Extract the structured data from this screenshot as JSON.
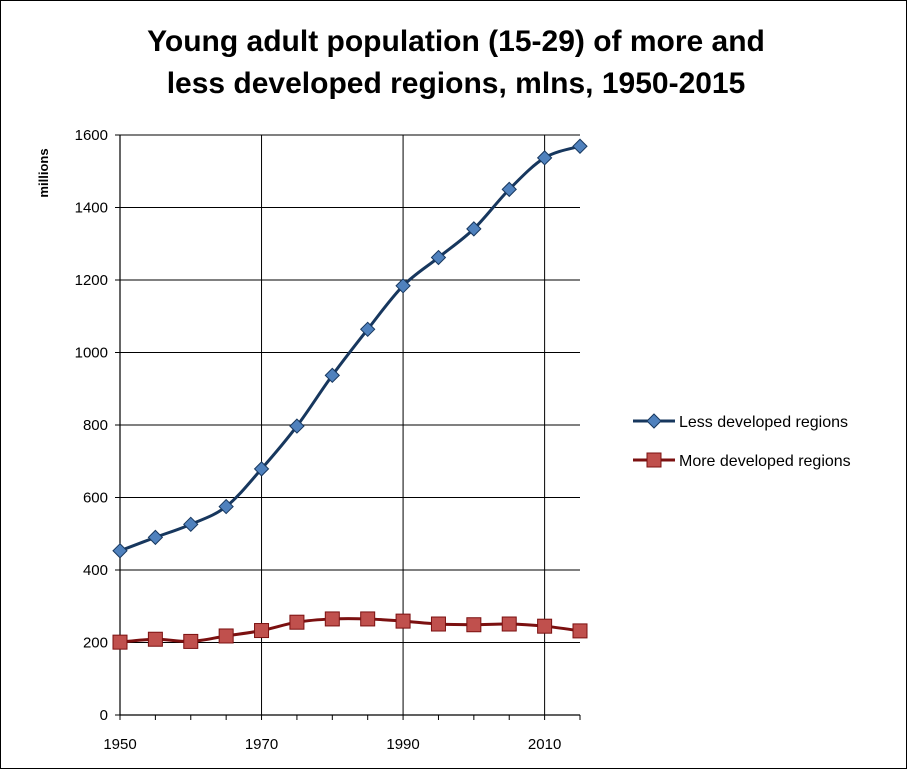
{
  "chart_data": {
    "type": "line",
    "title_line1": "Young adult population (15-29) of more and",
    "title_line2": "less developed regions, mlns, 1950-2015",
    "xlabel": "",
    "ylabel": "millions",
    "xlim": [
      1950,
      2015
    ],
    "ylim": [
      0,
      1600
    ],
    "x_ticks": [
      "1950",
      "1970",
      "1990",
      "2010"
    ],
    "y_ticks": [
      "0",
      "200",
      "400",
      "600",
      "800",
      "1000",
      "1200",
      "1400",
      "1600"
    ],
    "grid": true,
    "legend_position": "right",
    "x": [
      1950,
      1955,
      1960,
      1965,
      1970,
      1975,
      1980,
      1985,
      1990,
      1995,
      2000,
      2005,
      2010,
      2015
    ],
    "series": [
      {
        "name": "Less developed regions",
        "marker": "diamond",
        "line_color": "#17375e",
        "marker_color": "#4f81bd",
        "values": [
          453,
          490,
          526,
          575,
          679,
          797,
          937,
          1064,
          1184,
          1262,
          1341,
          1450,
          1537,
          1569
        ]
      },
      {
        "name": "More developed regions",
        "marker": "square",
        "line_color": "#7b1010",
        "marker_color": "#c0504d",
        "values": [
          201,
          209,
          203,
          218,
          233,
          256,
          265,
          265,
          259,
          251,
          249,
          251,
          245,
          232
        ]
      }
    ]
  }
}
